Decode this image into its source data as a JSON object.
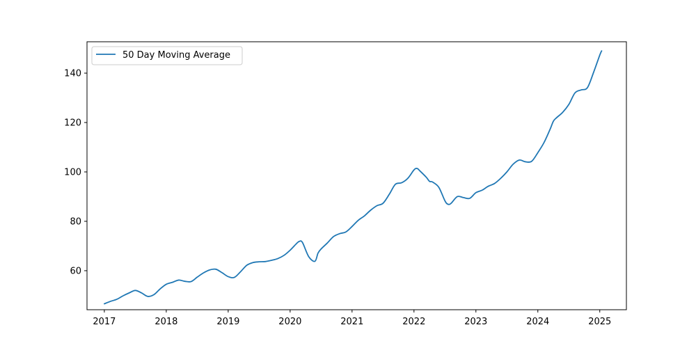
{
  "chart_data": {
    "type": "line",
    "title": "",
    "xlabel": "",
    "ylabel": "",
    "xlim": [
      2016.72,
      2025.43
    ],
    "ylim": [
      44.2,
      152.7
    ],
    "x_ticks": [
      2017,
      2018,
      2019,
      2020,
      2021,
      2022,
      2023,
      2024,
      2025
    ],
    "y_ticks": [
      60,
      80,
      100,
      120,
      140
    ],
    "grid": false,
    "legend": {
      "position": "upper-left",
      "entries": [
        "50 Day Moving Average"
      ]
    },
    "series": [
      {
        "name": "50 Day Moving Average",
        "color": "#1f77b4",
        "points": [
          [
            2017.0,
            46.6
          ],
          [
            2017.1,
            47.6
          ],
          [
            2017.2,
            48.4
          ],
          [
            2017.3,
            49.8
          ],
          [
            2017.4,
            51.0
          ],
          [
            2017.5,
            52.0
          ],
          [
            2017.6,
            51.0
          ],
          [
            2017.7,
            49.6
          ],
          [
            2017.8,
            50.3
          ],
          [
            2017.9,
            52.6
          ],
          [
            2018.0,
            54.5
          ],
          [
            2018.1,
            55.3
          ],
          [
            2018.2,
            56.2
          ],
          [
            2018.3,
            55.7
          ],
          [
            2018.4,
            55.6
          ],
          [
            2018.5,
            57.4
          ],
          [
            2018.6,
            59.1
          ],
          [
            2018.7,
            60.3
          ],
          [
            2018.8,
            60.6
          ],
          [
            2018.9,
            59.2
          ],
          [
            2019.0,
            57.6
          ],
          [
            2019.1,
            57.3
          ],
          [
            2019.2,
            59.6
          ],
          [
            2019.3,
            62.2
          ],
          [
            2019.4,
            63.3
          ],
          [
            2019.5,
            63.6
          ],
          [
            2019.6,
            63.7
          ],
          [
            2019.7,
            64.2
          ],
          [
            2019.8,
            64.9
          ],
          [
            2019.9,
            66.2
          ],
          [
            2020.0,
            68.3
          ],
          [
            2020.1,
            70.9
          ],
          [
            2020.15,
            71.9
          ],
          [
            2020.2,
            71.4
          ],
          [
            2020.3,
            65.7
          ],
          [
            2020.4,
            63.8
          ],
          [
            2020.45,
            67.1
          ],
          [
            2020.5,
            68.8
          ],
          [
            2020.6,
            71.2
          ],
          [
            2020.7,
            73.8
          ],
          [
            2020.8,
            75.0
          ],
          [
            2020.9,
            75.7
          ],
          [
            2021.0,
            77.9
          ],
          [
            2021.1,
            80.4
          ],
          [
            2021.2,
            82.2
          ],
          [
            2021.3,
            84.5
          ],
          [
            2021.4,
            86.3
          ],
          [
            2021.5,
            87.3
          ],
          [
            2021.6,
            90.9
          ],
          [
            2021.7,
            95.0
          ],
          [
            2021.8,
            95.6
          ],
          [
            2021.9,
            97.4
          ],
          [
            2022.0,
            100.8
          ],
          [
            2022.05,
            101.4
          ],
          [
            2022.1,
            100.3
          ],
          [
            2022.2,
            97.8
          ],
          [
            2022.25,
            96.2
          ],
          [
            2022.3,
            95.9
          ],
          [
            2022.4,
            93.8
          ],
          [
            2022.5,
            88.3
          ],
          [
            2022.55,
            86.9
          ],
          [
            2022.6,
            87.3
          ],
          [
            2022.7,
            90.0
          ],
          [
            2022.8,
            89.6
          ],
          [
            2022.9,
            89.3
          ],
          [
            2023.0,
            91.6
          ],
          [
            2023.1,
            92.6
          ],
          [
            2023.2,
            94.2
          ],
          [
            2023.3,
            95.3
          ],
          [
            2023.4,
            97.4
          ],
          [
            2023.5,
            100.0
          ],
          [
            2023.6,
            103.1
          ],
          [
            2023.7,
            104.8
          ],
          [
            2023.8,
            104.1
          ],
          [
            2023.9,
            104.3
          ],
          [
            2024.0,
            107.8
          ],
          [
            2024.1,
            111.9
          ],
          [
            2024.2,
            117.4
          ],
          [
            2024.25,
            120.5
          ],
          [
            2024.3,
            121.9
          ],
          [
            2024.4,
            124.1
          ],
          [
            2024.5,
            127.3
          ],
          [
            2024.6,
            132.0
          ],
          [
            2024.7,
            133.2
          ],
          [
            2024.8,
            134.1
          ],
          [
            2024.9,
            140.3
          ],
          [
            2025.0,
            147.3
          ],
          [
            2025.03,
            149.0
          ]
        ]
      }
    ]
  }
}
